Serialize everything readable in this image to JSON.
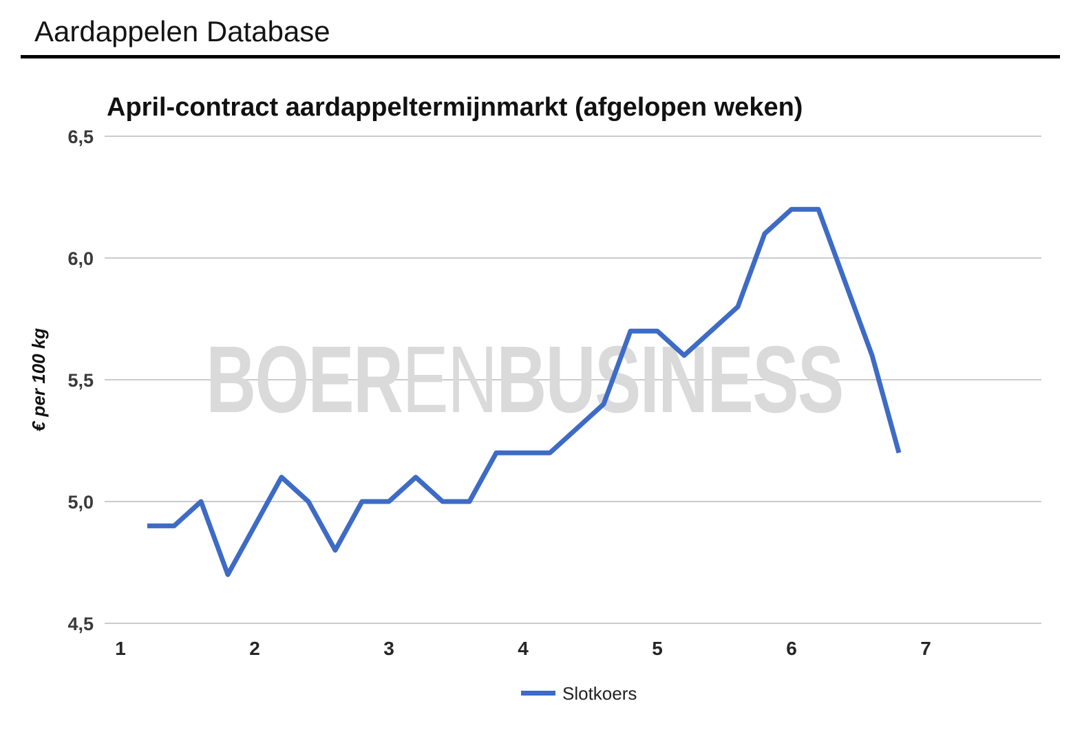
{
  "page": {
    "title": "Aardappelen Database"
  },
  "chart": {
    "title": "April-contract aardappeltermijnmarkt (afgelopen weken)",
    "y_axis_title": "€ per 100 kg",
    "legend_label": "Slotkoers",
    "watermark": {
      "part_bold1": "BOER",
      "part_light": "EN",
      "part_bold2": "BUSINESS"
    },
    "colors": {
      "line": "#3D6BC5",
      "grid": "#CBCBCB",
      "tick_text": "#333333",
      "title_text": "#111111",
      "watermark": "#DADADA",
      "header_rule": "#000000"
    }
  },
  "chart_data": {
    "type": "line",
    "title": "April-contract aardappeltermijnmarkt (afgelopen weken)",
    "xlabel": "",
    "ylabel": "€ per 100 kg",
    "xlim": [
      0.9,
      7.9
    ],
    "ylim": [
      4.5,
      6.5
    ],
    "x_ticks": [
      1,
      2,
      3,
      4,
      5,
      6,
      7
    ],
    "y_ticks": [
      4.5,
      5.0,
      5.5,
      6.0,
      6.5
    ],
    "y_tick_labels": [
      "4,5",
      "5,0",
      "5,5",
      "6,0",
      "6,5"
    ],
    "grid": true,
    "legend_position": "bottom",
    "series": [
      {
        "name": "Slotkoers",
        "x": [
          1.2,
          1.4,
          1.6,
          1.8,
          2.0,
          2.2,
          2.4,
          2.6,
          2.8,
          3.0,
          3.2,
          3.4,
          3.6,
          3.8,
          4.0,
          4.2,
          4.4,
          4.6,
          4.8,
          5.0,
          5.2,
          5.4,
          5.6,
          5.8,
          6.0,
          6.2,
          6.4,
          6.6,
          6.8
        ],
        "values": [
          4.9,
          4.9,
          5.0,
          4.7,
          4.9,
          5.1,
          5.0,
          4.8,
          5.0,
          5.0,
          5.1,
          5.0,
          5.0,
          5.2,
          5.2,
          5.2,
          5.3,
          5.4,
          5.7,
          5.7,
          5.6,
          5.7,
          5.8,
          6.1,
          6.2,
          6.2,
          5.9,
          5.6,
          5.2
        ]
      }
    ]
  }
}
